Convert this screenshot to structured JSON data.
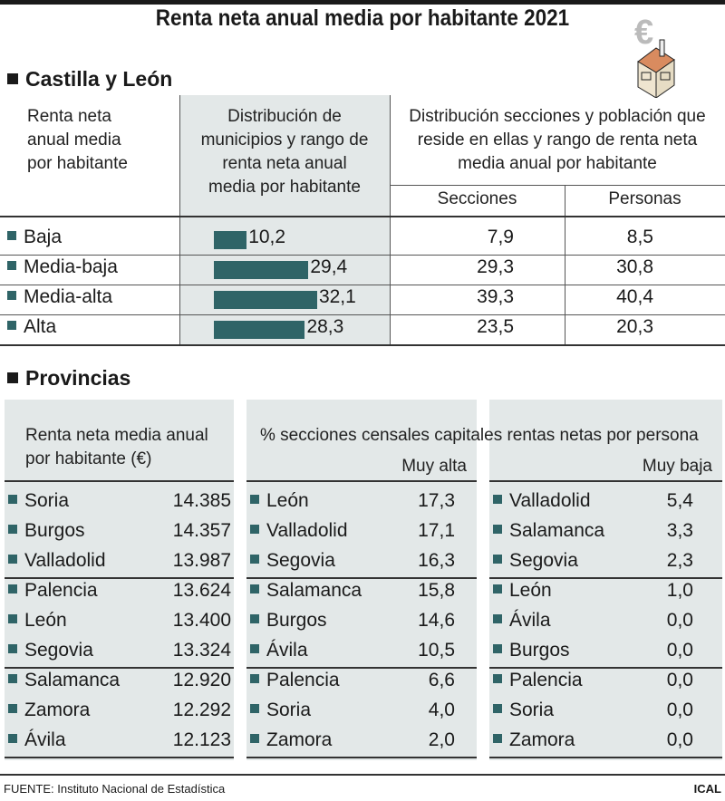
{
  "title": "Renta neta anual media por habitante 2021",
  "section1": "Castilla y León",
  "section2": "Provincias",
  "cyl": {
    "col1_header": [
      "Renta neta",
      "anual media",
      "por habitante"
    ],
    "col2_header": [
      "Distribución de",
      "municipios y rango de",
      "renta neta anual",
      "media por habitante"
    ],
    "col3_header": [
      "Distribución secciones y población que",
      "reside en ellas y rango de renta neta",
      "media anual por habitante"
    ],
    "sub_secciones": "Secciones",
    "sub_personas": "Personas",
    "rows": [
      {
        "label": "Baja",
        "municipios": "10,2",
        "secciones": "7,9",
        "personas": "8,5"
      },
      {
        "label": "Media-baja",
        "municipios": "29,4",
        "secciones": "29,3",
        "personas": "30,8"
      },
      {
        "label": "Media-alta",
        "municipios": "32,1",
        "secciones": "39,3",
        "personas": "40,4"
      },
      {
        "label": "Alta",
        "municipios": "28,3",
        "secciones": "23,5",
        "personas": "20,3"
      }
    ]
  },
  "chart_data": {
    "type": "bar",
    "orientation": "horizontal",
    "categories": [
      "Baja",
      "Media-baja",
      "Media-alta",
      "Alta"
    ],
    "values": [
      10.2,
      29.4,
      32.1,
      28.3
    ],
    "color": "#2f6467"
  },
  "provincias": {
    "p1_header": [
      "Renta neta media anual",
      "por habitante (€)"
    ],
    "p23_header": "% secciones censales capitales rentas netas por persona",
    "p2_sub": "Muy alta",
    "p3_sub": "Muy baja",
    "p1": [
      [
        "Soria",
        "14.385"
      ],
      [
        "Burgos",
        "14.357"
      ],
      [
        "Valladolid",
        "13.987"
      ],
      [
        "Palencia",
        "13.624"
      ],
      [
        "León",
        "13.400"
      ],
      [
        "Segovia",
        "13.324"
      ],
      [
        "Salamanca",
        "12.920"
      ],
      [
        "Zamora",
        "12.292"
      ],
      [
        "Ávila",
        "12.123"
      ]
    ],
    "p2": [
      [
        "León",
        "17,3"
      ],
      [
        "Valladolid",
        "17,1"
      ],
      [
        "Segovia",
        "16,3"
      ],
      [
        "Salamanca",
        "15,8"
      ],
      [
        "Burgos",
        "14,6"
      ],
      [
        "Ávila",
        "10,5"
      ],
      [
        "Palencia",
        "6,6"
      ],
      [
        "Soria",
        "4,0"
      ],
      [
        "Zamora",
        "2,0"
      ]
    ],
    "p3": [
      [
        "Valladolid",
        "5,4"
      ],
      [
        "Salamanca",
        "3,3"
      ],
      [
        "Segovia",
        "2,3"
      ],
      [
        "León",
        "1,0"
      ],
      [
        "Ávila",
        "0,0"
      ],
      [
        "Burgos",
        "0,0"
      ],
      [
        "Palencia",
        "0,0"
      ],
      [
        "Soria",
        "0,0"
      ],
      [
        "Zamora",
        "0,0"
      ]
    ]
  },
  "footer": {
    "source": "FUENTE: Instituto Nacional de Estadística",
    "brand": "ICAL"
  }
}
